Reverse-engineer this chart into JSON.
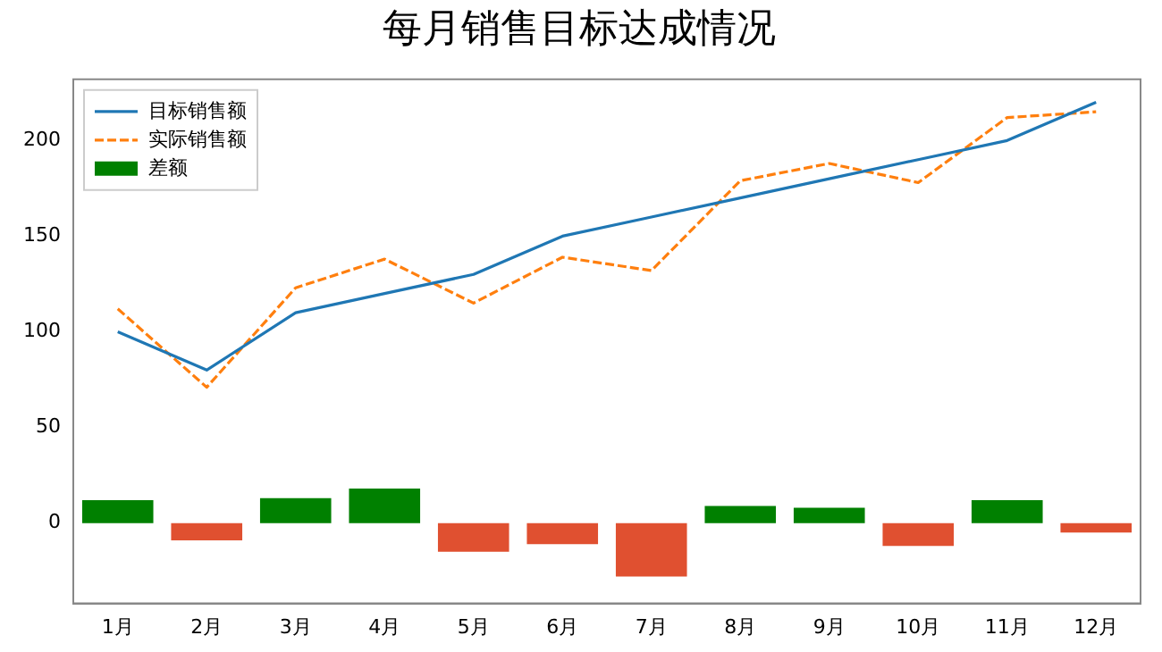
{
  "chart_data": {
    "type": "line",
    "title": "每月销售目标达成情况",
    "categories": [
      "1月",
      "2月",
      "3月",
      "4月",
      "5月",
      "6月",
      "7月",
      "8月",
      "9月",
      "10月",
      "11月",
      "12月"
    ],
    "series": [
      {
        "name": "目标销售额",
        "color": "#1f77b4",
        "line_style": "solid",
        "values": [
          100,
          80,
          110,
          120,
          130,
          150,
          160,
          170,
          180,
          190,
          200,
          220
        ]
      },
      {
        "name": "实际销售额",
        "color": "#ff7f0e",
        "line_style": "dashed",
        "values": [
          112,
          71,
          123,
          138,
          115,
          139,
          132,
          179,
          188,
          178,
          212,
          215
        ]
      },
      {
        "name": "差额",
        "type": "bar",
        "color": "#008000",
        "colors": [
          "#008000",
          "#e05030",
          "#008000",
          "#008000",
          "#e05030",
          "#e05030",
          "#e05030",
          "#008000",
          "#008000",
          "#e05030",
          "#008000",
          "#e05030"
        ],
        "values": [
          12,
          -9,
          13,
          18,
          -15,
          -11,
          -28,
          9,
          8,
          -12,
          12,
          -5
        ]
      }
    ],
    "ylim": [
      -42,
      232
    ],
    "yticks": [
      0,
      50,
      100,
      150,
      200
    ],
    "grid": false,
    "legend": "top left",
    "marker": "none"
  }
}
